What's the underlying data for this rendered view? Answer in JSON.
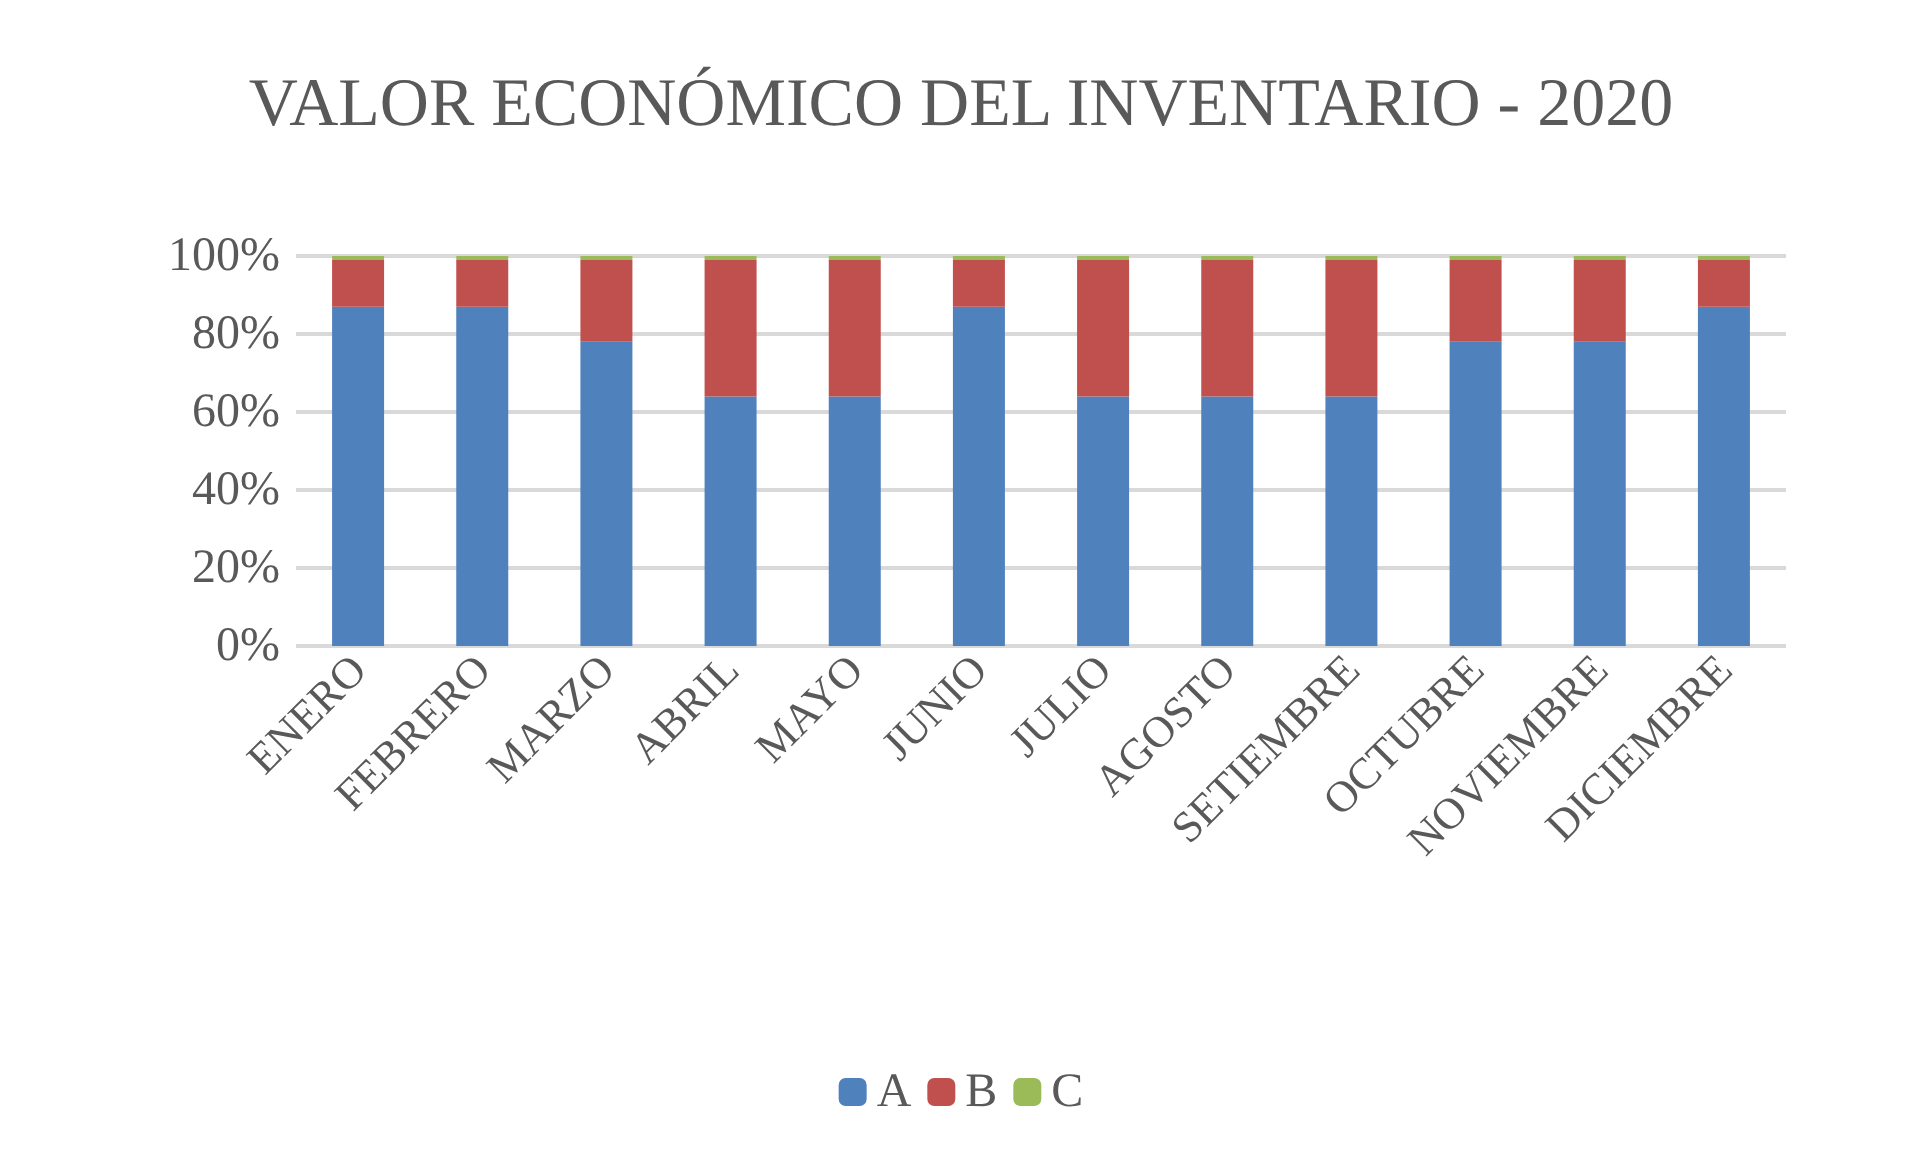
{
  "chart_data": {
    "type": "bar",
    "title": "VALOR ECONÓMICO DEL INVENTARIO - 2020",
    "stacked": true,
    "categories": [
      "ENERO",
      "FEBRERO",
      "MARZO",
      "ABRIL",
      "MAYO",
      "JUNIO",
      "JULIO",
      "AGOSTO",
      "SETIEMBRE",
      "OCTUBRE",
      "NOVIEMBRE",
      "DICIEMBRE"
    ],
    "series": [
      {
        "name": "A",
        "color": "#4f81bd",
        "values": [
          87,
          87,
          78,
          64,
          64,
          87,
          64,
          64,
          64,
          78,
          78,
          87
        ]
      },
      {
        "name": "B",
        "color": "#c0504d",
        "values": [
          12,
          12,
          21,
          35,
          35,
          12,
          35,
          35,
          35,
          21,
          21,
          12
        ]
      },
      {
        "name": "C",
        "color": "#9bbb59",
        "values": [
          1,
          1,
          1,
          1,
          1,
          1,
          1,
          1,
          1,
          1,
          1,
          1
        ]
      }
    ],
    "ylim": [
      0,
      100
    ],
    "yticks": [
      {
        "value": 0,
        "label": "0%"
      },
      {
        "value": 20,
        "label": "20%"
      },
      {
        "value": 40,
        "label": "40%"
      },
      {
        "value": 60,
        "label": "60%"
      },
      {
        "value": 80,
        "label": "80%"
      },
      {
        "value": 100,
        "label": "100%"
      }
    ],
    "grid": "y",
    "legend": "bottom"
  }
}
